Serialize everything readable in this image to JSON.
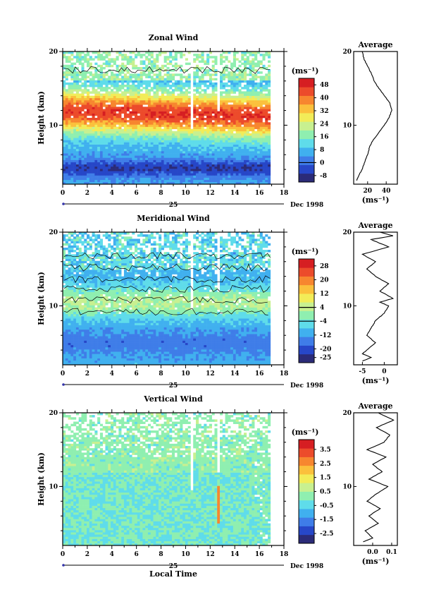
{
  "chart_data": [
    {
      "type": "heatmap",
      "title": "Zonal Wind",
      "xlabel": "",
      "ylabel": "Height (km)",
      "xlim": [
        0,
        18
      ],
      "ylim": [
        2,
        20
      ],
      "x_ticks": [
        0,
        2,
        4,
        6,
        8,
        10,
        12,
        14,
        16,
        18
      ],
      "y_ticks": [
        10,
        20
      ],
      "date_axis": {
        "tick": "25",
        "label": "Dec 1998"
      },
      "colorbar": {
        "unit": "(ms⁻¹)",
        "ticks": [
          -8,
          0,
          8,
          16,
          24,
          32,
          40,
          48
        ],
        "range": [
          -12,
          52
        ]
      },
      "field": {
        "type": "jet",
        "peak_km": 12,
        "peak_value": 46,
        "width_km": 2.8,
        "base_value": 6,
        "low_km": 4.2,
        "low_value": -6,
        "top_value": 18
      },
      "contour_levels": [
        0
      ],
      "profile": {
        "title": "Average",
        "xlabel": "(ms⁻¹)",
        "xlim": [
          5,
          52
        ],
        "x_ticks": [
          20,
          40
        ],
        "y_ticks": [
          10,
          20
        ],
        "height_km": [
          2.5,
          3,
          4,
          5,
          6,
          7,
          8,
          9,
          10,
          11,
          12,
          13,
          14,
          15,
          16,
          17,
          18,
          19,
          20
        ],
        "values": [
          8,
          10,
          14,
          17,
          20,
          22,
          26,
          32,
          38,
          43,
          46,
          44,
          38,
          32,
          27,
          24,
          20,
          16,
          14
        ]
      }
    },
    {
      "type": "heatmap",
      "title": "Meridional Wind",
      "xlabel": "",
      "ylabel": "Height (km)",
      "xlim": [
        0,
        18
      ],
      "ylim": [
        2,
        20
      ],
      "x_ticks": [
        0,
        2,
        4,
        6,
        8,
        10,
        12,
        14,
        16,
        18
      ],
      "y_ticks": [
        10,
        20
      ],
      "date_axis": {
        "tick": "25",
        "label": "Dec 1998"
      },
      "colorbar": {
        "unit": "(ms⁻¹)",
        "ticks": [
          -25,
          -20,
          -12,
          -4,
          4,
          12,
          20,
          28
        ],
        "range": [
          -28,
          32
        ]
      },
      "field": {
        "type": "bands",
        "peak_km": 10.5,
        "peak_value": 3,
        "width_km": 2,
        "base_value": -10,
        "low_km": 5,
        "low_value": -16,
        "top_value": -6
      },
      "contour_levels": [
        -4,
        4
      ],
      "profile": {
        "title": "Average",
        "xlabel": "(ms⁻¹)",
        "xlim": [
          -7,
          3
        ],
        "x_ticks": [
          -5,
          0
        ],
        "y_ticks": [
          10,
          20
        ],
        "height_km": [
          2.5,
          3,
          3.5,
          4,
          5,
          6,
          7,
          8,
          9,
          10,
          10.5,
          11,
          12,
          13,
          14,
          15,
          16,
          17,
          18,
          19,
          19.5,
          20
        ],
        "values": [
          -5,
          -3,
          -5,
          -4,
          -2,
          -4,
          -3,
          -2,
          0,
          1,
          -1,
          2,
          -1,
          1,
          -2,
          -4,
          -2,
          -5,
          1,
          -3,
          2,
          -1
        ]
      }
    },
    {
      "type": "heatmap",
      "title": "Vertical Wind",
      "xlabel": "Local Time",
      "ylabel": "Height (km)",
      "xlim": [
        0,
        18
      ],
      "ylim": [
        2,
        20
      ],
      "x_ticks": [
        0,
        2,
        4,
        6,
        8,
        10,
        12,
        14,
        16,
        18
      ],
      "y_ticks": [
        10,
        20
      ],
      "date_axis": {
        "tick": "25",
        "label": "Dec 1998"
      },
      "colorbar": {
        "unit": "(ms⁻¹)",
        "ticks": [
          -2.5,
          -1.5,
          -0.5,
          0.5,
          1.5,
          2.5,
          3.5
        ],
        "range": [
          -3.2,
          4.2
        ]
      },
      "field": {
        "type": "noise",
        "peak_km": 14,
        "peak_value": 0.5,
        "width_km": 4,
        "base_value": -0.1,
        "low_km": 8,
        "low_value": -0.2,
        "top_value": 0.4
      },
      "contour_levels": [],
      "profile": {
        "title": "Average",
        "xlabel": "(ms⁻¹)",
        "xlim": [
          -0.1,
          0.13
        ],
        "x_ticks": [
          0.0,
          0.1
        ],
        "x_tick_labels": [
          "0.0",
          "0.1"
        ],
        "y_ticks": [
          10,
          20
        ],
        "height_km": [
          2.5,
          3,
          4,
          5,
          6,
          7,
          8,
          9,
          10,
          11,
          12,
          13,
          14,
          15,
          16,
          17,
          18,
          19,
          20
        ],
        "values": [
          -0.05,
          0.0,
          -0.04,
          0.03,
          -0.02,
          0.04,
          -0.03,
          0.02,
          0.08,
          -0.02,
          0.05,
          0.0,
          0.07,
          -0.03,
          0.06,
          0.09,
          0.02,
          0.11,
          0.03
        ]
      }
    }
  ]
}
